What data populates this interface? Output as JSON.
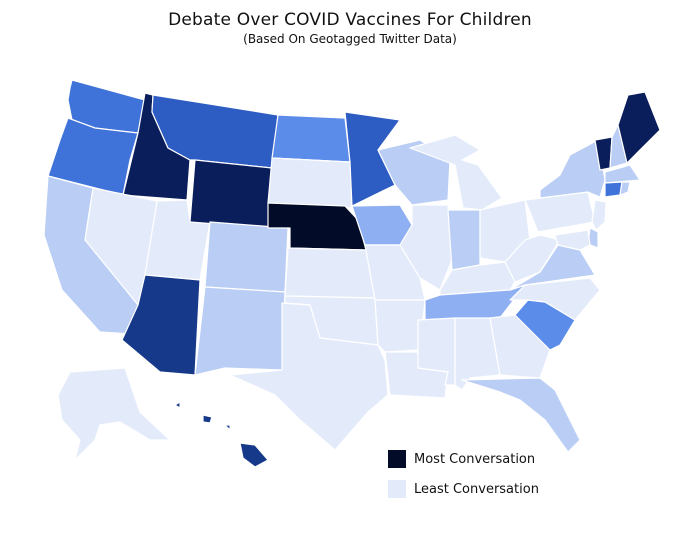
{
  "title": "Debate Over COVID Vaccines For Children",
  "subtitle": "(Based On Geotagged Twitter Data)",
  "legend": [
    {
      "label": "Most Conversation",
      "color": "#020b27"
    },
    {
      "label": "Least Conversation",
      "color": "#e3ebfb"
    }
  ],
  "scale_colors": {
    "level_0": "#e3ebfb",
    "level_1": "#b9cdf5",
    "level_2": "#8eb0f3",
    "level_3": "#5b8cea",
    "level_4": "#3f73d9",
    "level_5": "#2d5cc2",
    "level_6": "#17398a",
    "level_7": "#0b1e5c",
    "level_8": "#020b27"
  },
  "states": [
    {
      "id": "WA",
      "level": 4
    },
    {
      "id": "OR",
      "level": 4
    },
    {
      "id": "CA",
      "level": 1
    },
    {
      "id": "ID",
      "level": 7
    },
    {
      "id": "NV",
      "level": 0
    },
    {
      "id": "UT",
      "level": 0
    },
    {
      "id": "AZ",
      "level": 6
    },
    {
      "id": "MT",
      "level": 5
    },
    {
      "id": "WY",
      "level": 7
    },
    {
      "id": "CO",
      "level": 1
    },
    {
      "id": "NM",
      "level": 1
    },
    {
      "id": "ND",
      "level": 3
    },
    {
      "id": "SD",
      "level": 0
    },
    {
      "id": "NE",
      "level": 8
    },
    {
      "id": "KS",
      "level": 0
    },
    {
      "id": "OK",
      "level": 0
    },
    {
      "id": "TX",
      "level": 0
    },
    {
      "id": "MN",
      "level": 5
    },
    {
      "id": "IA",
      "level": 2
    },
    {
      "id": "MO",
      "level": 0
    },
    {
      "id": "AR",
      "level": 0
    },
    {
      "id": "LA",
      "level": 0
    },
    {
      "id": "WI",
      "level": 1
    },
    {
      "id": "IL",
      "level": 0
    },
    {
      "id": "MI",
      "level": 0
    },
    {
      "id": "IN",
      "level": 1
    },
    {
      "id": "OH",
      "level": 0
    },
    {
      "id": "KY",
      "level": 0
    },
    {
      "id": "TN",
      "level": 2
    },
    {
      "id": "MS",
      "level": 0
    },
    {
      "id": "AL",
      "level": 0
    },
    {
      "id": "GA",
      "level": 0
    },
    {
      "id": "FL",
      "level": 1
    },
    {
      "id": "SC",
      "level": 3
    },
    {
      "id": "NC",
      "level": 0
    },
    {
      "id": "VA",
      "level": 1
    },
    {
      "id": "WV",
      "level": 0
    },
    {
      "id": "PA",
      "level": 0
    },
    {
      "id": "NY",
      "level": 1
    },
    {
      "id": "VT",
      "level": 7
    },
    {
      "id": "NH",
      "level": 1
    },
    {
      "id": "ME",
      "level": 7
    },
    {
      "id": "MA",
      "level": 1
    },
    {
      "id": "CT",
      "level": 4
    },
    {
      "id": "RI",
      "level": 1
    },
    {
      "id": "NJ",
      "level": 0
    },
    {
      "id": "DE",
      "level": 1
    },
    {
      "id": "MD",
      "level": 0
    },
    {
      "id": "AK",
      "level": 0
    },
    {
      "id": "HI",
      "level": 6
    }
  ]
}
